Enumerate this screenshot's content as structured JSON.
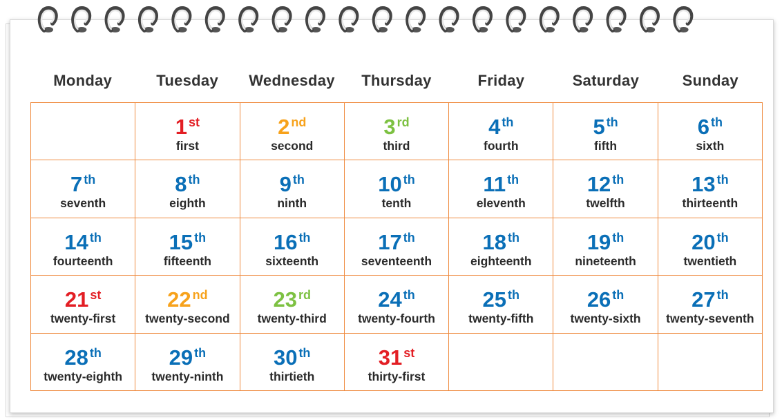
{
  "weekdays": [
    "Monday",
    "Tuesday",
    "Wednesday",
    "Thursday",
    "Friday",
    "Saturday",
    "Sunday"
  ],
  "weeks": [
    [
      null,
      {
        "number": 1,
        "suffix": "st",
        "word": "first",
        "color": "#e31e24"
      },
      {
        "number": 2,
        "suffix": "nd",
        "word": "second",
        "color": "#f7a21b"
      },
      {
        "number": 3,
        "suffix": "rd",
        "word": "third",
        "color": "#7dc142"
      },
      {
        "number": 4,
        "suffix": "th",
        "word": "fourth",
        "color": "#0a6fb7"
      },
      {
        "number": 5,
        "suffix": "th",
        "word": "fifth",
        "color": "#0a6fb7"
      },
      {
        "number": 6,
        "suffix": "th",
        "word": "sixth",
        "color": "#0a6fb7"
      }
    ],
    [
      {
        "number": 7,
        "suffix": "th",
        "word": "seventh",
        "color": "#0a6fb7"
      },
      {
        "number": 8,
        "suffix": "th",
        "word": "eighth",
        "color": "#0a6fb7"
      },
      {
        "number": 9,
        "suffix": "th",
        "word": "ninth",
        "color": "#0a6fb7"
      },
      {
        "number": 10,
        "suffix": "th",
        "word": "tenth",
        "color": "#0a6fb7"
      },
      {
        "number": 11,
        "suffix": "th",
        "word": "eleventh",
        "color": "#0a6fb7"
      },
      {
        "number": 12,
        "suffix": "th",
        "word": "twelfth",
        "color": "#0a6fb7"
      },
      {
        "number": 13,
        "suffix": "th",
        "word": "thirteenth",
        "color": "#0a6fb7"
      }
    ],
    [
      {
        "number": 14,
        "suffix": "th",
        "word": "fourteenth",
        "color": "#0a6fb7"
      },
      {
        "number": 15,
        "suffix": "th",
        "word": "fifteenth",
        "color": "#0a6fb7"
      },
      {
        "number": 16,
        "suffix": "th",
        "word": "sixteenth",
        "color": "#0a6fb7"
      },
      {
        "number": 17,
        "suffix": "th",
        "word": "seventeenth",
        "color": "#0a6fb7"
      },
      {
        "number": 18,
        "suffix": "th",
        "word": "eighteenth",
        "color": "#0a6fb7"
      },
      {
        "number": 19,
        "suffix": "th",
        "word": "nineteenth",
        "color": "#0a6fb7"
      },
      {
        "number": 20,
        "suffix": "th",
        "word": "twentieth",
        "color": "#0a6fb7"
      }
    ],
    [
      {
        "number": 21,
        "suffix": "st",
        "word": "twenty-first",
        "color": "#e31e24"
      },
      {
        "number": 22,
        "suffix": "nd",
        "word": "twenty-second",
        "color": "#f7a21b"
      },
      {
        "number": 23,
        "suffix": "rd",
        "word": "twenty-third",
        "color": "#7dc142"
      },
      {
        "number": 24,
        "suffix": "th",
        "word": "twenty-fourth",
        "color": "#0a6fb7"
      },
      {
        "number": 25,
        "suffix": "th",
        "word": "twenty-fifth",
        "color": "#0a6fb7"
      },
      {
        "number": 26,
        "suffix": "th",
        "word": "twenty-sixth",
        "color": "#0a6fb7"
      },
      {
        "number": 27,
        "suffix": "th",
        "word": "twenty-seventh",
        "color": "#0a6fb7"
      }
    ],
    [
      {
        "number": 28,
        "suffix": "th",
        "word": "twenty-eighth",
        "color": "#0a6fb7"
      },
      {
        "number": 29,
        "suffix": "th",
        "word": "twenty-ninth",
        "color": "#0a6fb7"
      },
      {
        "number": 30,
        "suffix": "th",
        "word": "thirtieth",
        "color": "#0a6fb7"
      },
      {
        "number": 31,
        "suffix": "st",
        "word": "thirty-first",
        "color": "#e31e24"
      },
      null,
      null,
      null
    ]
  ]
}
